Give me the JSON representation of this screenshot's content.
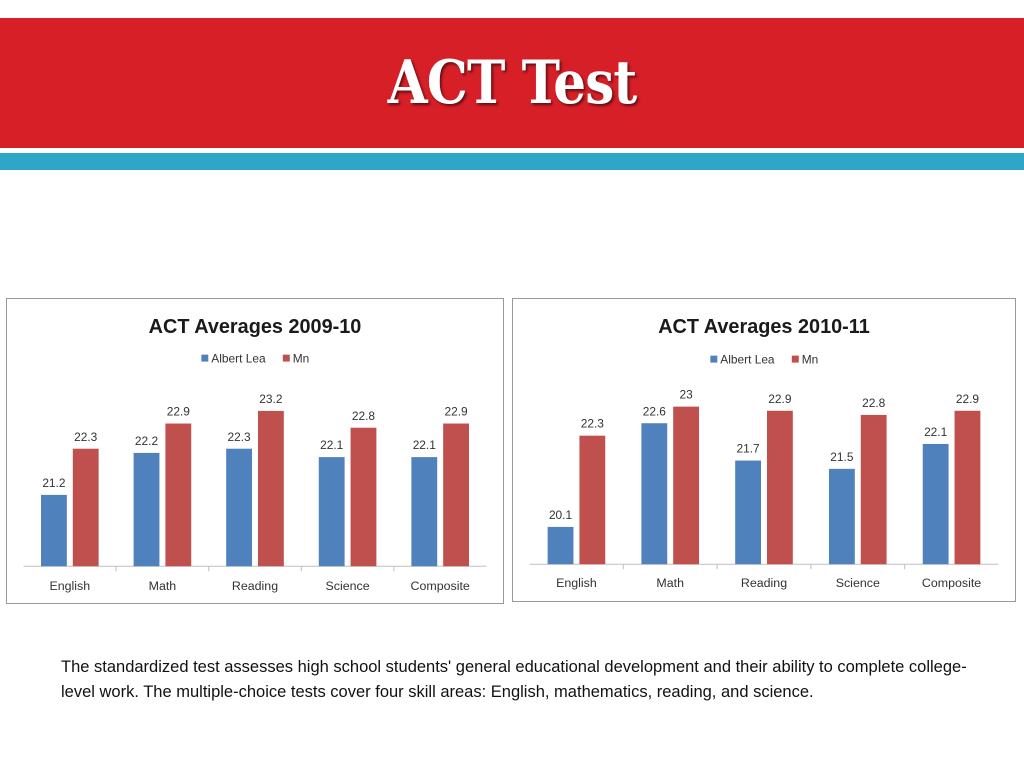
{
  "slide": {
    "title": "ACT Test",
    "description": "The standardized test assesses high school students' general educational development and their ability to complete college-level work. The multiple-choice tests cover four skill areas: English, mathematics, reading, and science.",
    "colors": {
      "title_bar": "#d71f27",
      "accent_bar": "#2ea6c8"
    }
  },
  "chart_data": [
    {
      "type": "bar",
      "title": "ACT Averages 2009-10",
      "categories": [
        "English",
        "Math",
        "Reading",
        "Science",
        "Composite"
      ],
      "series": [
        {
          "name": "Albert Lea",
          "color": "#4f81bd",
          "values": [
            21.2,
            22.2,
            22.3,
            22.1,
            22.1
          ]
        },
        {
          "name": "Mn",
          "color": "#c0504d",
          "values": [
            22.3,
            22.9,
            23.2,
            22.8,
            22.9
          ]
        }
      ],
      "ylim": [
        19.5,
        23.5
      ],
      "legend": "top",
      "grid": false,
      "data_labels": true
    },
    {
      "type": "bar",
      "title": "ACT Averages 2010-11",
      "categories": [
        "English",
        "Math",
        "Reading",
        "Science",
        "Composite"
      ],
      "series": [
        {
          "name": "Albert Lea",
          "color": "#4f81bd",
          "values": [
            20.1,
            22.6,
            21.7,
            21.5,
            22.1
          ]
        },
        {
          "name": "Mn",
          "color": "#c0504d",
          "values": [
            22.3,
            23,
            22.9,
            22.8,
            22.9
          ]
        }
      ],
      "ylim": [
        19.2,
        23.2
      ],
      "legend": "top",
      "grid": false,
      "data_labels": true
    }
  ]
}
